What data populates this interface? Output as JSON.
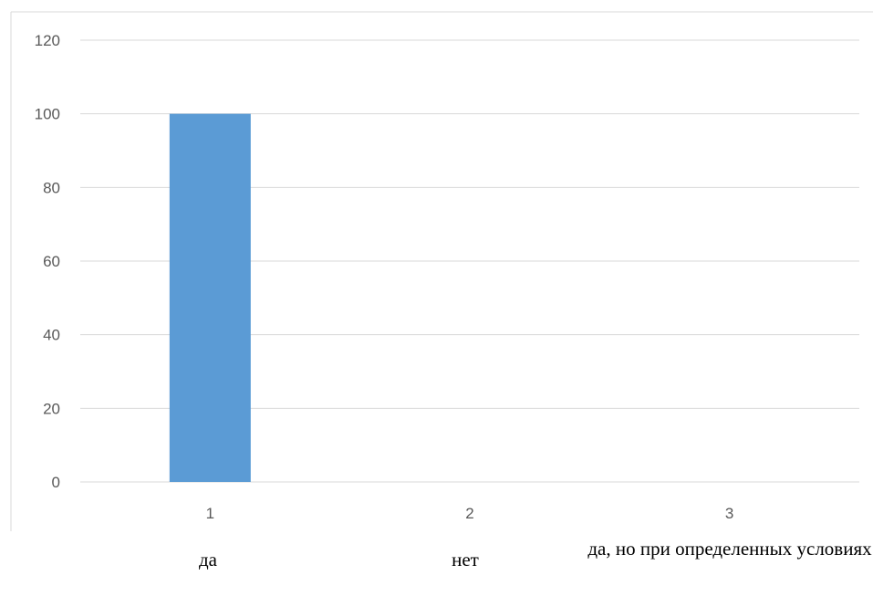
{
  "chart_data": {
    "type": "bar",
    "categories": [
      "1",
      "2",
      "3"
    ],
    "values": [
      100,
      0,
      0
    ],
    "ylim": [
      0,
      120
    ],
    "yticks": [
      0,
      20,
      40,
      60,
      80,
      100,
      120
    ],
    "grid": true,
    "legend": "none",
    "bar_color": "#5b9bd5",
    "category_labels": [
      "да",
      "нет",
      "да, но при определенных условиях"
    ]
  }
}
